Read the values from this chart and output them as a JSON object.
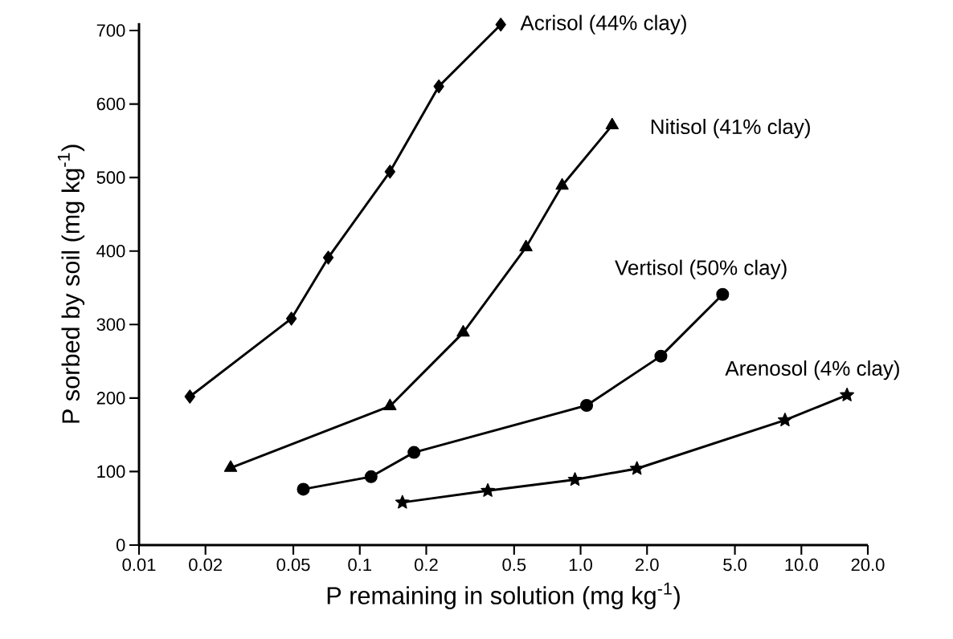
{
  "chart_data": {
    "type": "line",
    "xlabel": "P remaining in solution (mg kg$^{-1}$)",
    "ylabel": "P sorbed by soil (mg kg$^{-1}$)",
    "log": "x",
    "grid": false,
    "line_style": "solid",
    "xlim": [
      0.01,
      20
    ],
    "ylim": [
      0,
      710
    ],
    "xticks": [
      0.01,
      0.02,
      0.05,
      0.1,
      0.2,
      0.5,
      {
        "value": 1,
        "label": "1.0"
      },
      {
        "value": 2,
        "label": "2.0"
      },
      {
        "value": 5,
        "label": "5.0"
      },
      {
        "value": 10,
        "label": "10.0"
      },
      {
        "value": 20,
        "label": "20.0"
      }
    ],
    "yticks": [
      0,
      100,
      200,
      300,
      400,
      500,
      600,
      700
    ],
    "series": [
      {
        "name": "Acrisol (44% clay)",
        "color": "#000000",
        "marker": "diamond",
        "x": [
          0.017,
          0.049,
          0.072,
          0.137,
          0.228,
          0.435
        ],
        "values": [
          202,
          308,
          391,
          508,
          624,
          708
        ]
      },
      {
        "name": "Nitisol (41% clay)",
        "color": "#000000",
        "marker": "triangle",
        "x": [
          0.026,
          0.137,
          0.294,
          0.566,
          0.825,
          1.39
        ],
        "values": [
          105,
          189,
          289,
          405,
          489,
          571
        ]
      },
      {
        "name": "Vertisol (50% clay)",
        "color": "#000000",
        "marker": "circle",
        "x": [
          0.0555,
          0.1125,
          0.176,
          1.065,
          2.31,
          4.4
        ],
        "values": [
          76,
          93,
          126,
          190,
          257,
          341
        ]
      },
      {
        "name": "Arenosol (4% clay)",
        "color": "#000000",
        "marker": "star",
        "x": [
          0.156,
          0.38,
          0.943,
          1.8,
          8.43,
          16.1
        ],
        "values": [
          58,
          74,
          89,
          104,
          170,
          204
        ]
      }
    ]
  }
}
